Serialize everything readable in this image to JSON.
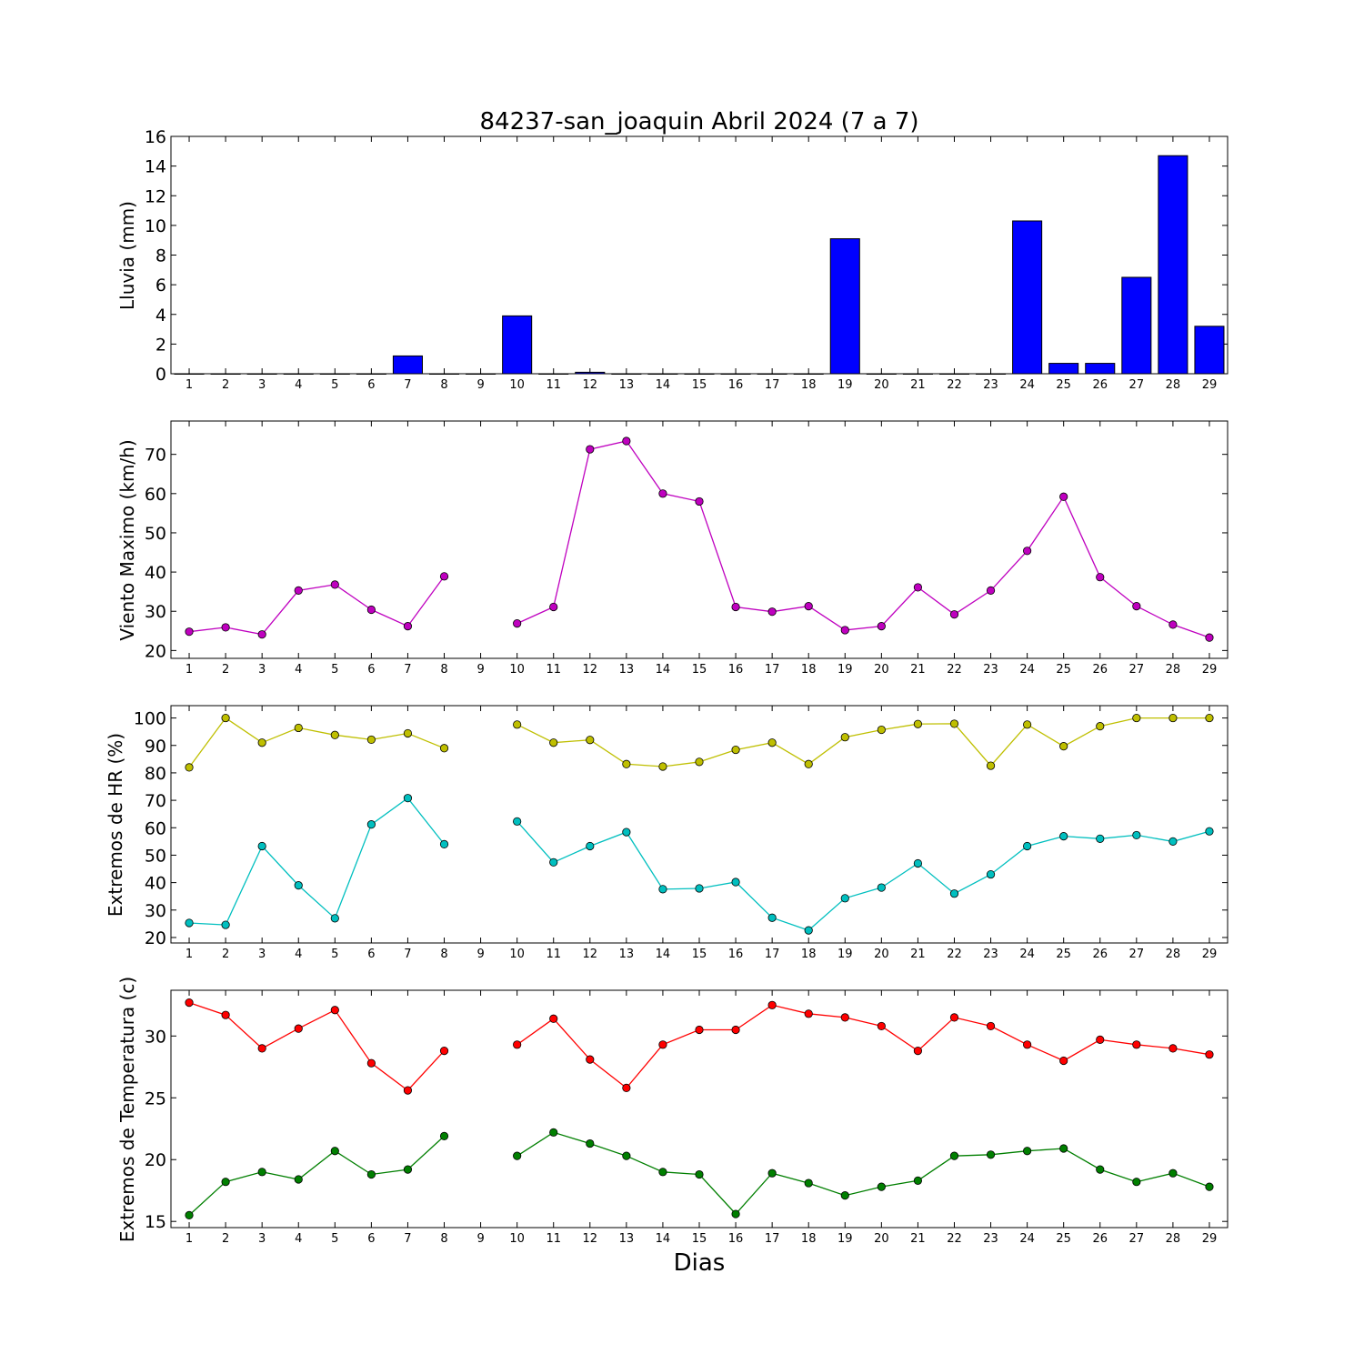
{
  "chart_data": {
    "title": "84237-san_joaquin Abril 2024  (7 a 7)",
    "xlabel": "Dias",
    "days": [
      1,
      2,
      3,
      4,
      5,
      6,
      7,
      8,
      9,
      10,
      11,
      12,
      13,
      14,
      15,
      16,
      17,
      18,
      19,
      20,
      21,
      22,
      23,
      24,
      25,
      26,
      27,
      28,
      29
    ],
    "panels": [
      {
        "type": "bar",
        "ylabel": "Lluvia (mm)",
        "ylim": [
          0,
          16
        ],
        "yticks": [
          0,
          2,
          4,
          6,
          8,
          10,
          12,
          14,
          16
        ],
        "series": [
          {
            "color": "#0000ff",
            "values": [
              0,
              0,
              0,
              0,
              0,
              0,
              1.2,
              0,
              0,
              3.9,
              0,
              0.1,
              0,
              0,
              0,
              0,
              0,
              0,
              9.1,
              0,
              0,
              0,
              0,
              10.3,
              0.7,
              0.7,
              6.5,
              14.7,
              3.2
            ]
          }
        ]
      },
      {
        "type": "line",
        "ylabel": "Viento Maximo (km/h)",
        "ylim": [
          18,
          78.5
        ],
        "yticks": [
          20,
          30,
          40,
          50,
          60,
          70
        ],
        "series": [
          {
            "color": "#bf00bf",
            "values": [
              24.8,
              25.9,
              24.1,
              35.3,
              36.8,
              30.4,
              26.2,
              38.9,
              null,
              26.9,
              31.1,
              71.3,
              73.4,
              60.0,
              58.0,
              31.1,
              29.9,
              31.3,
              25.2,
              26.2,
              36.1,
              29.2,
              35.3,
              45.4,
              59.2,
              38.7,
              31.3,
              26.6,
              23.3
            ]
          }
        ]
      },
      {
        "type": "line",
        "ylabel": "Extremos de HR (%)",
        "ylim": [
          18,
          104.5
        ],
        "yticks": [
          20,
          30,
          40,
          50,
          60,
          70,
          80,
          90,
          100
        ],
        "series": [
          {
            "color": "#bfbf00",
            "values": [
              82,
              100,
              91,
              96.4,
              93.8,
              92.1,
              94.4,
              89,
              null,
              97.6,
              91,
              92,
              83.2,
              82.3,
              84,
              88.4,
              91,
              83.2,
              93,
              95.7,
              97.8,
              97.9,
              82.6,
              97.6,
              89.7,
              97,
              100,
              100,
              100
            ]
          },
          {
            "color": "#00bfbf",
            "values": [
              25.3,
              24.6,
              53.3,
              39,
              27,
              61.2,
              70.8,
              54,
              null,
              62.3,
              47.4,
              53.3,
              58.4,
              37.6,
              37.9,
              40.2,
              27.2,
              22.6,
              34.3,
              38.2,
              47,
              36,
              43,
              53.3,
              56.9,
              56,
              57.3,
              55,
              58.7
            ]
          }
        ]
      },
      {
        "type": "line",
        "ylabel": "Extremos de Temperatura (c)",
        "ylim": [
          14.5,
          33.7
        ],
        "yticks": [
          15,
          20,
          25,
          30
        ],
        "series": [
          {
            "color": "#ff0000",
            "values": [
              32.7,
              31.7,
              29,
              30.6,
              32.1,
              27.8,
              25.6,
              28.8,
              null,
              29.3,
              31.4,
              28.1,
              25.8,
              29.3,
              30.5,
              30.5,
              32.5,
              31.8,
              31.5,
              30.8,
              28.8,
              31.5,
              30.8,
              29.3,
              28,
              29.7,
              29.3,
              29,
              28.5
            ]
          },
          {
            "color": "#007f00",
            "values": [
              15.5,
              18.2,
              19,
              18.4,
              20.7,
              18.8,
              19.2,
              21.9,
              null,
              20.3,
              22.2,
              21.3,
              20.3,
              19,
              18.8,
              15.6,
              18.9,
              18.1,
              17.1,
              17.8,
              18.3,
              20.3,
              20.4,
              20.7,
              20.9,
              19.2,
              18.2,
              18.9,
              17.8
            ]
          }
        ]
      }
    ]
  }
}
